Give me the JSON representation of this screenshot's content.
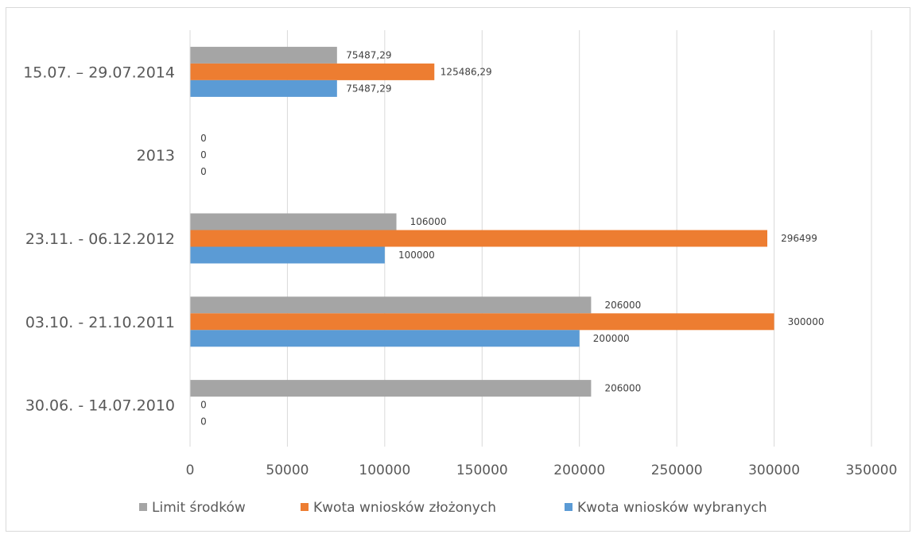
{
  "chart_data": {
    "type": "bar",
    "orientation": "horizontal",
    "categories": [
      "30.06. - 14.07.2010",
      "03.10. - 21.10.2011",
      "23.11. - 06.12.2012",
      "2013",
      "15.07. – 29.07.2014"
    ],
    "series": [
      {
        "name": "Limit środków",
        "color": "#a5a5a5",
        "values": [
          206000,
          206000,
          106000,
          0,
          75487.29
        ],
        "labels": [
          "206000",
          "206000",
          "106000",
          "0",
          "75487,29"
        ]
      },
      {
        "name": "Kwota wniosków złożonych",
        "color": "#ed7d31",
        "values": [
          0,
          300000,
          296499,
          0,
          125486.29
        ],
        "labels": [
          "0",
          "300000",
          "296499",
          "0",
          "125486,29"
        ]
      },
      {
        "name": "Kwota wniosków wybranych",
        "color": "#5b9bd5",
        "values": [
          0,
          200000,
          100000,
          0,
          75487.29
        ],
        "labels": [
          "0",
          "200000",
          "100000",
          "0",
          "75487,29"
        ]
      }
    ],
    "x_ticks": [
      "0",
      "50000",
      "100000",
      "150000",
      "200000",
      "250000",
      "300000",
      "350000"
    ],
    "xlim": [
      0,
      350000
    ],
    "grid": true,
    "legend_position": "bottom",
    "title": "",
    "xlabel": "",
    "ylabel": ""
  }
}
